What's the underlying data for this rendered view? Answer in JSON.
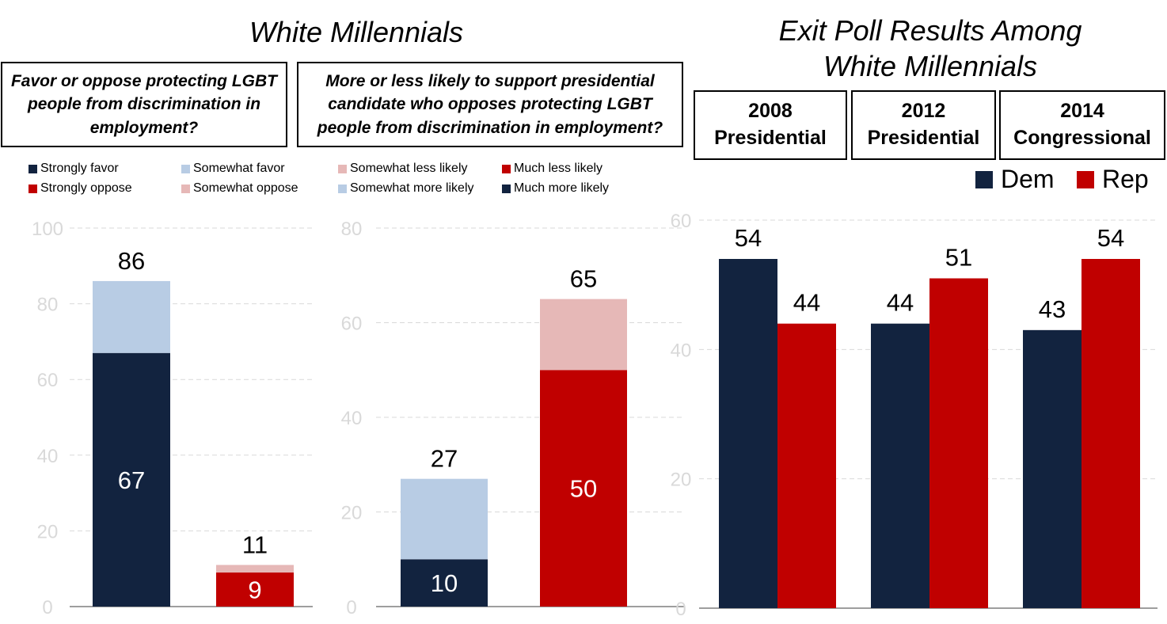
{
  "left_title": "White Millennials",
  "right_title": [
    "Exit Poll Results Among",
    "White Millennials"
  ],
  "question1": "Favor or oppose protecting LGBT people from discrimination in employment?",
  "question2": "More or less likely to support presidential candidate who opposes protecting LGBT people from discrimination in employment?",
  "year_boxes": [
    {
      "line1": "2008",
      "line2": "Presidential"
    },
    {
      "line1": "2012",
      "line2": "Presidential"
    },
    {
      "line1": "2014",
      "line2": "Congressional"
    }
  ],
  "legend1": [
    {
      "label": "Strongly favor",
      "color": "#12233f"
    },
    {
      "label": "Somewhat favor",
      "color": "#b8cce4"
    },
    {
      "label": "Strongly oppose",
      "color": "#c00000"
    },
    {
      "label": "Somewhat oppose",
      "color": "#e6b8b7"
    }
  ],
  "legend2": [
    {
      "label": "Somewhat less likely",
      "color": "#e6b8b7"
    },
    {
      "label": "Much less likely",
      "color": "#c00000"
    },
    {
      "label": "Somewhat more likely",
      "color": "#b8cce4"
    },
    {
      "label": "Much more likely",
      "color": "#12233f"
    }
  ],
  "legend3": [
    {
      "label": "Dem",
      "color": "#12233f"
    },
    {
      "label": "Rep",
      "color": "#c00000"
    }
  ],
  "chart_data": [
    {
      "type": "bar",
      "stacked": true,
      "ylim": [
        0,
        100
      ],
      "yticks": [
        0,
        20,
        40,
        60,
        80,
        100
      ],
      "grid": true,
      "bars": [
        {
          "total": 86,
          "segments": [
            {
              "name": "Strongly favor",
              "value": 67,
              "color": "#12233f"
            },
            {
              "name": "Somewhat favor",
              "value": 19,
              "color": "#b8cce4"
            }
          ],
          "inner_label": "67"
        },
        {
          "total": 11,
          "segments": [
            {
              "name": "Strongly oppose",
              "value": 9,
              "color": "#c00000"
            },
            {
              "name": "Somewhat oppose",
              "value": 2,
              "color": "#e6b8b7"
            }
          ],
          "inner_label": "9"
        }
      ]
    },
    {
      "type": "bar",
      "stacked": true,
      "ylim": [
        0,
        80
      ],
      "yticks": [
        0,
        20,
        40,
        60,
        80
      ],
      "grid": true,
      "bars": [
        {
          "total": 27,
          "segments": [
            {
              "name": "Much more likely",
              "value": 10,
              "color": "#12233f"
            },
            {
              "name": "Somewhat more likely",
              "value": 17,
              "color": "#b8cce4"
            }
          ],
          "inner_label": "10"
        },
        {
          "total": 65,
          "segments": [
            {
              "name": "Much less likely",
              "value": 50,
              "color": "#c00000"
            },
            {
              "name": "Somewhat less likely",
              "value": 15,
              "color": "#e6b8b7"
            }
          ],
          "inner_label": "50"
        }
      ]
    },
    {
      "type": "bar",
      "stacked": false,
      "ylim": [
        0,
        60
      ],
      "yticks": [
        0,
        20,
        40,
        60
      ],
      "grid": true,
      "categories": [
        "2008 Presidential",
        "2012 Presidential",
        "2014 Congressional"
      ],
      "series": [
        {
          "name": "Dem",
          "values": [
            54,
            44,
            43
          ],
          "color": "#12233f"
        },
        {
          "name": "Rep",
          "values": [
            44,
            51,
            54
          ],
          "color": "#c00000"
        }
      ]
    }
  ]
}
